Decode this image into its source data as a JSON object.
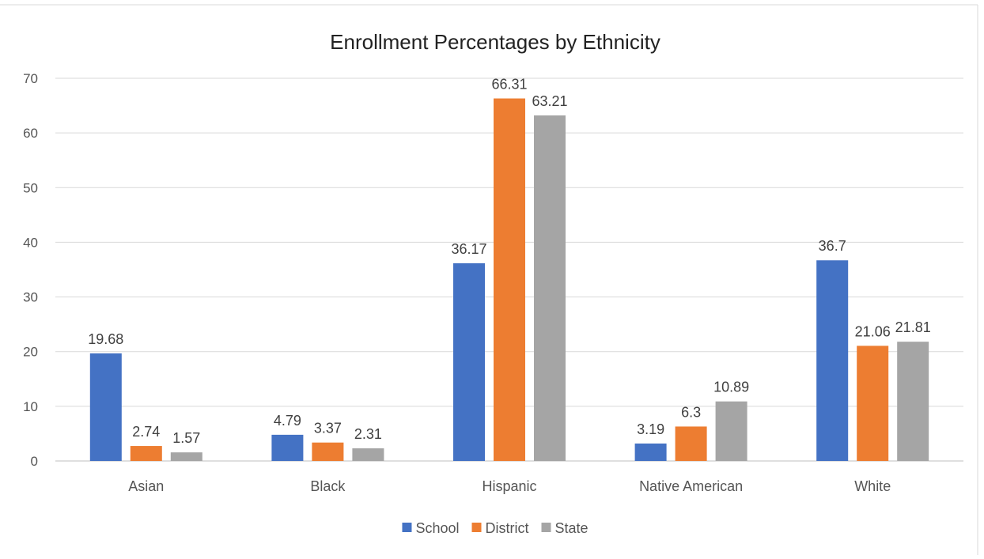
{
  "chart_data": {
    "type": "bar",
    "title": "Enrollment Percentages by Ethnicity",
    "xlabel": "",
    "ylabel": "",
    "ylim": [
      0,
      70
    ],
    "yticks": [
      0,
      10,
      20,
      30,
      40,
      50,
      60,
      70
    ],
    "grid": true,
    "legend_position": "bottom",
    "categories": [
      "Asian",
      "Black",
      "Hispanic",
      "Native American",
      "White"
    ],
    "series": [
      {
        "name": "School",
        "color": "#4472C4",
        "values": [
          19.68,
          4.79,
          36.17,
          3.19,
          36.7
        ]
      },
      {
        "name": "District",
        "color": "#ED7D31",
        "values": [
          2.74,
          3.37,
          66.31,
          6.3,
          21.06
        ]
      },
      {
        "name": "State",
        "color": "#A5A5A5",
        "values": [
          1.57,
          2.31,
          63.21,
          10.89,
          21.81
        ]
      }
    ]
  }
}
